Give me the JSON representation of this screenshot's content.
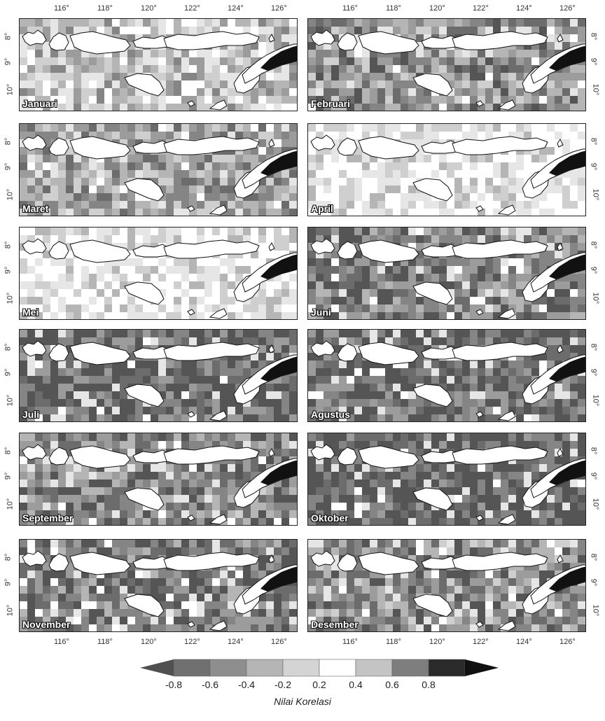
{
  "months": [
    "Januari",
    "Februari",
    "Maret",
    "April",
    "Mei",
    "Juni",
    "Juli",
    "Agustus",
    "September",
    "Oktober",
    "November",
    "Desember"
  ],
  "month_levels": [
    0.35,
    0.65,
    0.55,
    0.1,
    0.15,
    0.75,
    0.85,
    0.85,
    0.7,
    0.95,
    0.8,
    0.65
  ],
  "lon_ticks": [
    "116°",
    "118°",
    "120°",
    "122°",
    "124°",
    "126°"
  ],
  "lat_ticks": [
    "8°",
    "9°",
    "10°"
  ],
  "legend": {
    "ticks": [
      "-0.8",
      "-0.6",
      "-0.4",
      "-0.2",
      "0.2",
      "0.4",
      "0.6",
      "0.8"
    ],
    "title": "Nilai Korelasi",
    "colors": [
      "#707070",
      "#8e8e8e",
      "#b5b5b5",
      "#d4d4d4",
      "#ffffff",
      "#c4c4c4",
      "#7e7e7e",
      "#2a2a2a"
    ]
  }
}
